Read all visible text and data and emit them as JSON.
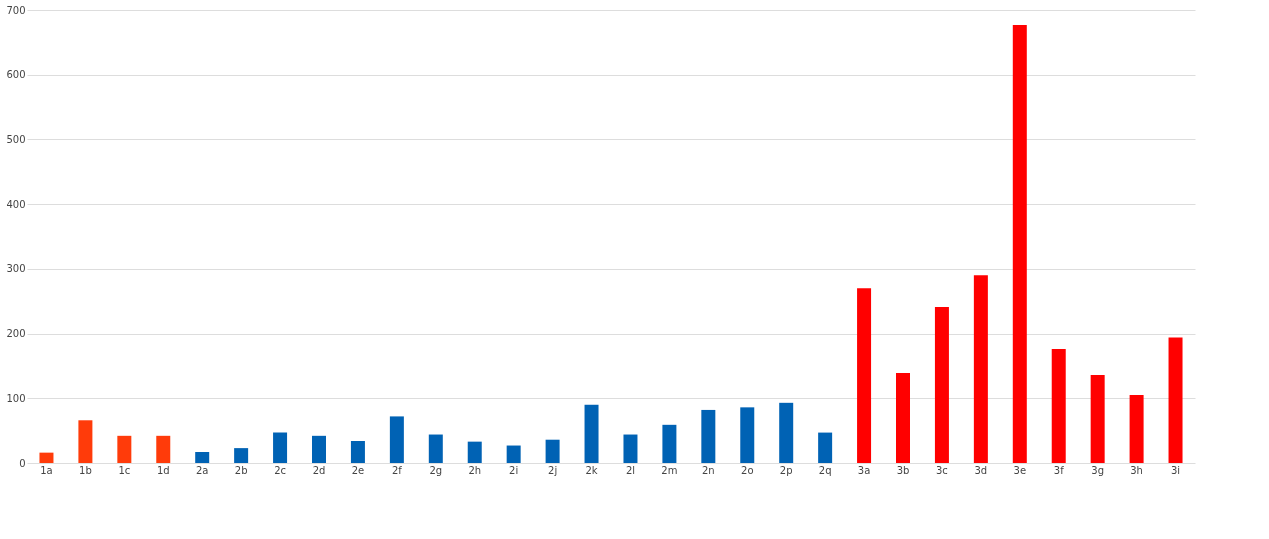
{
  "chart_data": {
    "type": "bar",
    "categories": [
      "1a",
      "1b",
      "1c",
      "1d",
      "2a",
      "2b",
      "2c",
      "2d",
      "2e",
      "2f",
      "2g",
      "2h",
      "2i",
      "2j",
      "2k",
      "2l",
      "2m",
      "2n",
      "2o",
      "2p",
      "2q",
      "3a",
      "3b",
      "3c",
      "3d",
      "3e",
      "3f",
      "3g",
      "3h",
      "3i"
    ],
    "values": [
      16,
      66,
      42,
      42,
      17,
      23,
      47,
      42,
      34,
      72,
      44,
      33,
      27,
      36,
      90,
      44,
      59,
      82,
      86,
      93,
      47,
      270,
      139,
      241,
      290,
      677,
      176,
      136,
      105,
      194
    ],
    "colors": [
      "#ff3b0a",
      "#ff3b0a",
      "#ff3b0a",
      "#ff3b0a",
      "#0062b4",
      "#0062b4",
      "#0062b4",
      "#0062b4",
      "#0062b4",
      "#0062b4",
      "#0062b4",
      "#0062b4",
      "#0062b4",
      "#0062b4",
      "#0062b4",
      "#0062b4",
      "#0062b4",
      "#0062b4",
      "#0062b4",
      "#0062b4",
      "#0062b4",
      "#ff0000",
      "#ff0000",
      "#ff0000",
      "#ff0000",
      "#ff0000",
      "#ff0000",
      "#ff0000",
      "#ff0000",
      "#ff0000"
    ],
    "ylim": [
      0,
      700
    ],
    "yticks": [
      0,
      100,
      200,
      300,
      400,
      500,
      600,
      700
    ],
    "grid": "y"
  }
}
